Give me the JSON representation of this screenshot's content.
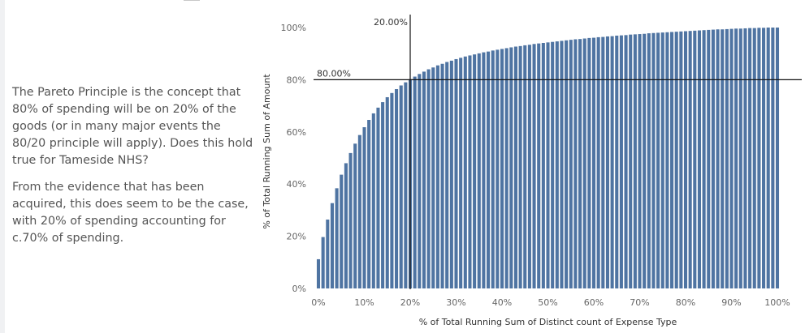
{
  "narrative": {
    "paragraph1": "The Pareto Principle is the concept that 80% of spending will be on 20% of the goods (or in many major events the 80/20 principle will apply). Does this hold true for Tameside NHS?",
    "paragraph2": "From the evidence that has been acquired, this does seem to be the case, with 20% of spending accounting for c.70% of spending."
  },
  "colors": {
    "bar": "#4f74a2",
    "reference_line": "#111111",
    "tick_text": "#666666"
  },
  "chart_data": {
    "type": "bar",
    "title": "",
    "xlabel": "% of Total Running Sum of Distinct count of Expense Type",
    "ylabel": "% of Total Running Sum of Amount",
    "xlim": [
      0,
      100
    ],
    "ylim": [
      0,
      100
    ],
    "x_ticks": [
      "0%",
      "10%",
      "20%",
      "30%",
      "40%",
      "50%",
      "60%",
      "70%",
      "80%",
      "90%",
      "100%"
    ],
    "y_ticks": [
      "0%",
      "20%",
      "40%",
      "60%",
      "80%",
      "100%"
    ],
    "reference_lines": [
      {
        "axis": "x",
        "value": 20,
        "label": "20.00%"
      },
      {
        "axis": "y",
        "value": 80,
        "label": "80.00%"
      }
    ],
    "bar_x_percent": [
      0.0,
      1.0,
      2.0,
      3.0,
      4.0,
      5.0,
      6.0,
      7.0,
      8.0,
      9.0,
      10.0,
      11.0,
      12.0,
      13.0,
      14.0,
      15.0,
      16.0,
      17.0,
      18.0,
      19.0,
      20.0,
      21.0,
      22.0,
      23.0,
      24.0,
      25.0,
      26.0,
      27.0,
      28.0,
      29.0,
      30.0,
      31.0,
      32.0,
      33.0,
      34.0,
      35.0,
      36.0,
      37.0,
      38.0,
      39.0,
      40.0,
      41.0,
      42.0,
      43.0,
      44.0,
      45.0,
      46.0,
      47.0,
      48.0,
      49.0,
      50.0,
      51.0,
      52.0,
      53.0,
      54.0,
      55.0,
      56.0,
      57.0,
      58.0,
      59.0,
      60.0,
      61.0,
      62.0,
      63.0,
      64.0,
      65.0,
      66.0,
      67.0,
      68.0,
      69.0,
      70.0,
      71.0,
      72.0,
      73.0,
      74.0,
      75.0,
      76.0,
      77.0,
      78.0,
      79.0,
      80.0,
      81.0,
      82.0,
      83.0,
      84.0,
      85.0,
      86.0,
      87.0,
      88.0,
      89.0,
      90.0,
      91.0,
      92.0,
      93.0,
      94.0,
      95.0,
      96.0,
      97.0,
      98.0,
      99.0,
      100.0
    ],
    "values": [
      11.2,
      19.7,
      26.4,
      32.7,
      38.4,
      43.6,
      48.0,
      51.9,
      55.5,
      58.8,
      61.8,
      64.6,
      67.1,
      69.3,
      71.4,
      73.3,
      74.9,
      76.4,
      77.8,
      79.0,
      80.2,
      81.2,
      82.2,
      83.1,
      84.0,
      84.7,
      85.5,
      86.1,
      86.8,
      87.3,
      87.9,
      88.4,
      88.9,
      89.3,
      89.7,
      90.1,
      90.5,
      90.8,
      91.2,
      91.5,
      91.8,
      92.1,
      92.4,
      92.7,
      92.9,
      93.2,
      93.4,
      93.7,
      93.9,
      94.1,
      94.3,
      94.5,
      94.7,
      94.9,
      95.1,
      95.3,
      95.5,
      95.6,
      95.8,
      96.0,
      96.1,
      96.3,
      96.4,
      96.6,
      96.7,
      96.9,
      97.0,
      97.1,
      97.3,
      97.4,
      97.5,
      97.6,
      97.8,
      97.9,
      98.0,
      98.1,
      98.2,
      98.3,
      98.4,
      98.5,
      98.6,
      98.7,
      98.8,
      98.9,
      99.0,
      99.1,
      99.2,
      99.3,
      99.3,
      99.4,
      99.5,
      99.6,
      99.6,
      99.7,
      99.8,
      99.8,
      99.9,
      99.9,
      100.0,
      100.0,
      100.0
    ]
  }
}
